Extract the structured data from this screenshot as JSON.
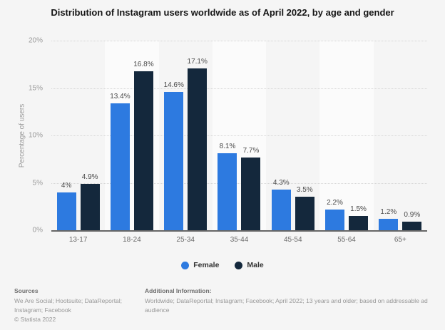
{
  "title": "Distribution of Instagram users worldwide as of April 2022, by age and gender",
  "chart_data": {
    "type": "bar",
    "categories": [
      "13-17",
      "18-24",
      "25-34",
      "35-44",
      "45-54",
      "55-64",
      "65+"
    ],
    "series": [
      {
        "name": "Female",
        "color": "#2d7ae0",
        "values": [
          4,
          13.4,
          14.6,
          8.1,
          4.3,
          2.2,
          1.2
        ],
        "labels": [
          "4%",
          "13.4%",
          "14.6%",
          "8.1%",
          "4.3%",
          "2.2%",
          "1.2%"
        ]
      },
      {
        "name": "Male",
        "color": "#14283c",
        "values": [
          4.9,
          16.8,
          17.1,
          7.7,
          3.5,
          1.5,
          0.9
        ],
        "labels": [
          "4.9%",
          "16.8%",
          "17.1%",
          "7.7%",
          "3.5%",
          "1.5%",
          "0.9%"
        ]
      }
    ],
    "xlabel": "",
    "ylabel": "Percentage of users",
    "ylim": [
      0,
      20
    ],
    "yticks": [
      "20%",
      "15%",
      "10%",
      "5%",
      "0%"
    ],
    "grid": "horizontal dotted",
    "legend_position": "bottom-center",
    "plot_band_alternation": "odd columns lighter"
  },
  "footer": {
    "sources_heading": "Sources",
    "sources_line1": "We Are Social; Hootsuite; DataReportal;",
    "sources_line2": "Instagram; Facebook",
    "copyright": "© Statista 2022",
    "additional_heading": "Additional Information:",
    "additional_text": "Worldwide; DataReportal; Instagram; Facebook; April 2022; 13 years and older; based on addressable ad audience"
  }
}
